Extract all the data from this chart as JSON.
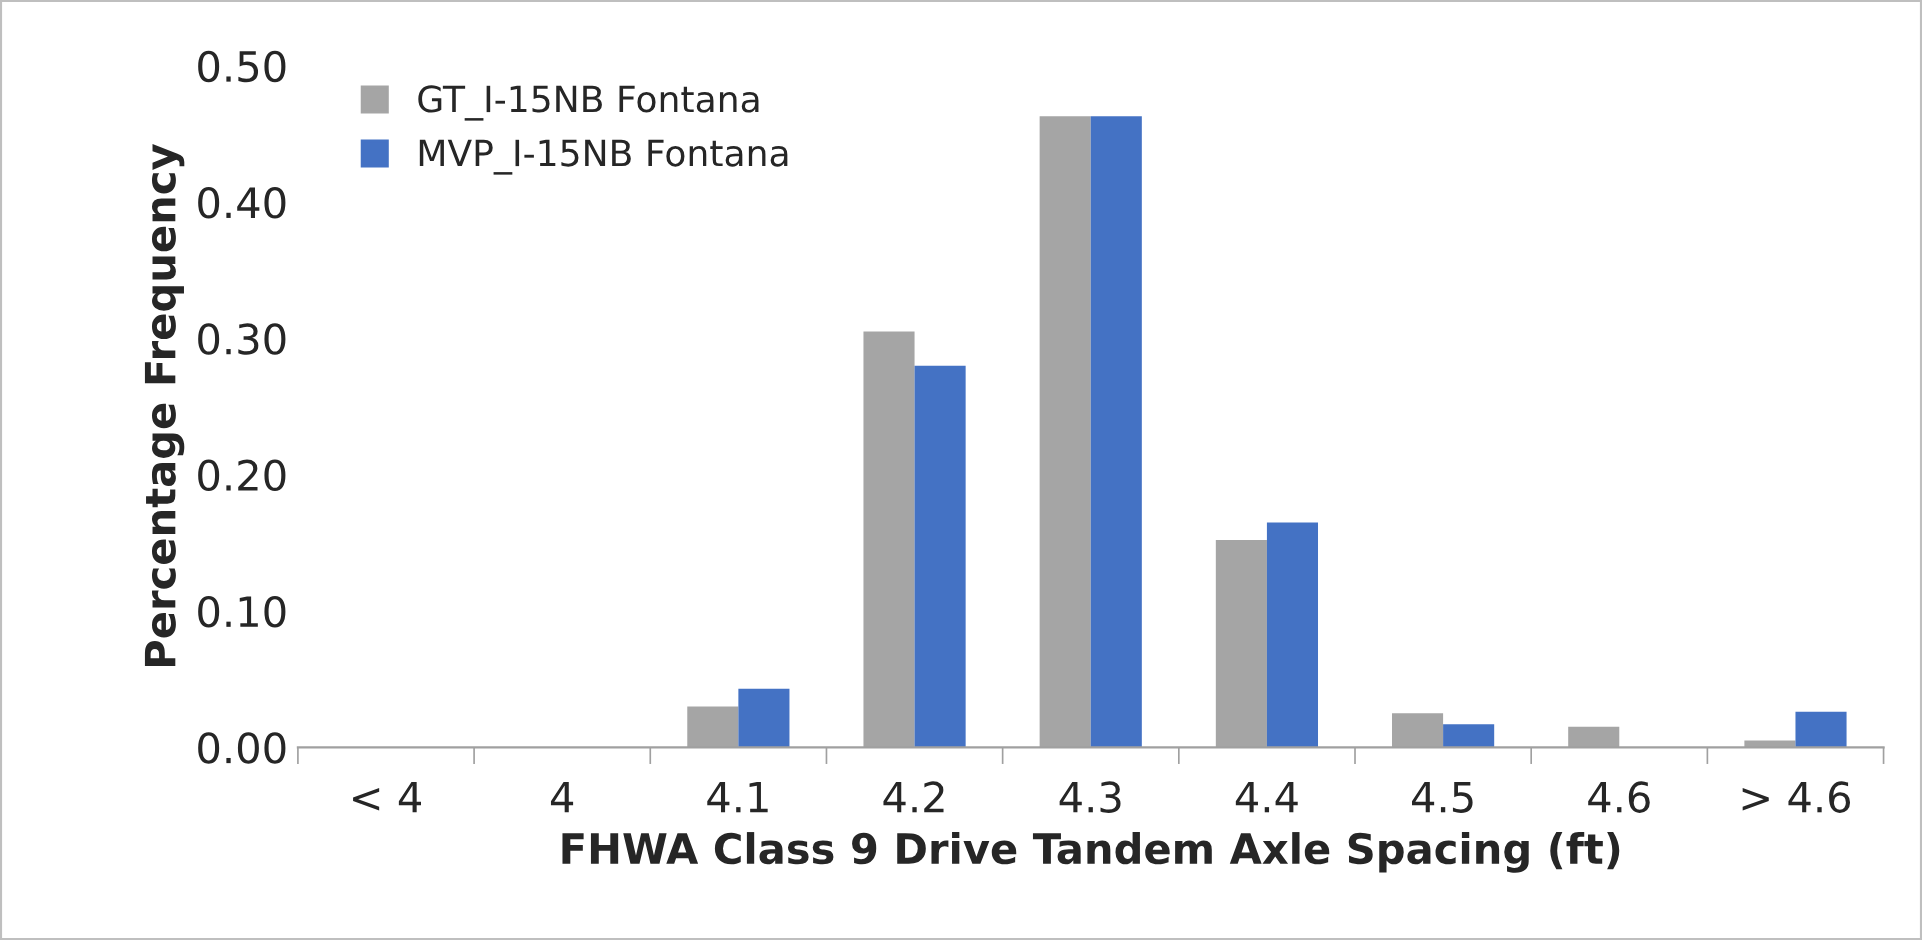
{
  "chart_data": {
    "type": "bar",
    "xlabel": "FHWA Class 9 Drive Tandem Axle Spacing (ft)",
    "ylabel": "Percentage Frequency",
    "categories": [
      "< 4",
      "4",
      "4.1",
      "4.2",
      "4.3",
      "4.4",
      "4.5",
      "4.6",
      "> 4.6"
    ],
    "series": [
      {
        "name": "GT_I-15NB Fontana",
        "color": "#a5a5a5",
        "values": [
          0,
          0,
          0.03,
          0.305,
          0.463,
          0.152,
          0.025,
          0.015,
          0.005
        ]
      },
      {
        "name": "MVP_I-15NB Fontana",
        "color": "#4472c4",
        "values": [
          0,
          0,
          0.043,
          0.28,
          0.463,
          0.165,
          0.017,
          0,
          0.026
        ]
      }
    ],
    "ylim": [
      0,
      0.5
    ],
    "yticks": [
      {
        "value": 0,
        "label": "0.00"
      },
      {
        "value": 0.1,
        "label": "0.10"
      },
      {
        "value": 0.2,
        "label": "0.20"
      },
      {
        "value": 0.3,
        "label": "0.30"
      },
      {
        "value": 0.4,
        "label": "0.40"
      },
      {
        "value": 0.5,
        "label": "0.50"
      }
    ],
    "grid": false,
    "legend": "top left"
  }
}
